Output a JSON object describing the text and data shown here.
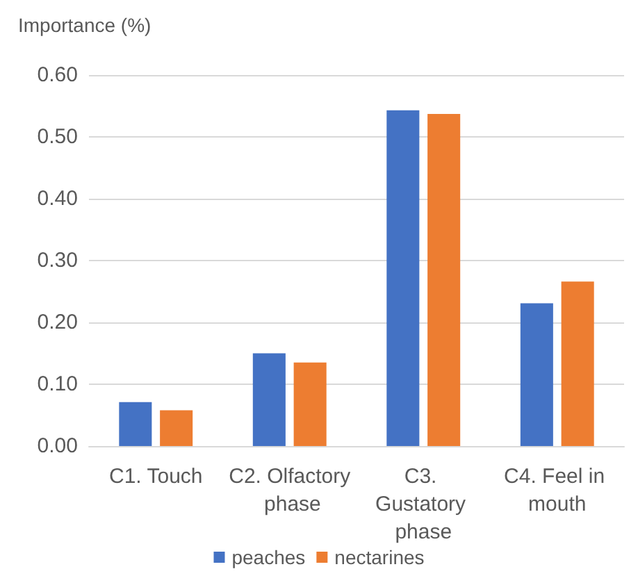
{
  "chart_data": {
    "type": "bar",
    "ylabel": "Importance (%)",
    "categories": [
      "C1. Touch",
      "C2. Olfactory phase",
      "C3. Gustatory phase",
      "C4. Feel in mouth"
    ],
    "series": [
      {
        "name": "peaches",
        "color": "#4472c4",
        "values": [
          0.071,
          0.15,
          0.543,
          0.231
        ]
      },
      {
        "name": "nectarines",
        "color": "#ed7d31",
        "values": [
          0.058,
          0.135,
          0.537,
          0.266
        ]
      }
    ],
    "ylim": [
      0,
      0.6
    ],
    "yticks": [
      {
        "value": 0,
        "label": "0.00"
      },
      {
        "value": 0.1,
        "label": "0.10"
      },
      {
        "value": 0.2,
        "label": "0.20"
      },
      {
        "value": 0.3,
        "label": "0.30"
      },
      {
        "value": 0.4,
        "label": "0.40"
      },
      {
        "value": 0.5,
        "label": "0.50"
      },
      {
        "value": 0.6,
        "label": "0.60"
      }
    ],
    "grid": "y",
    "legend": "bottom"
  }
}
